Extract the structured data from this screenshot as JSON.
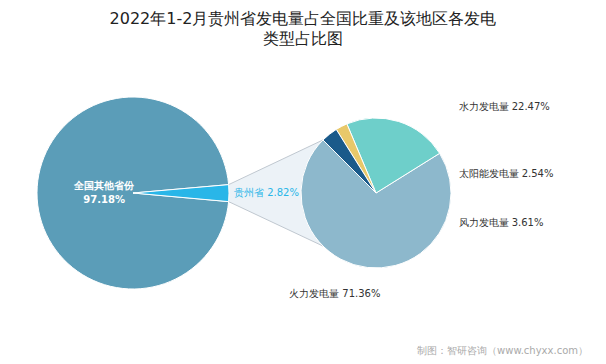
{
  "chart_data": [
    {
      "type": "pie",
      "title": "2022年1-2月贵州省发电量占全国比重及该地区各发电\n类型占比图",
      "categories": [
        "全国其他省份",
        "贵州省"
      ],
      "values": [
        97.18,
        2.82
      ],
      "value_labels": [
        "97.18%",
        "2.82%"
      ],
      "colors": [
        "#5b9db8",
        "#29b6e8"
      ],
      "data_labels": true,
      "annotations": [
        "制图：智研咨询（www.chyxx.com）"
      ]
    },
    {
      "type": "pie",
      "categories": [
        "火力发电量",
        "水力发电量",
        "太阳能发电量",
        "风力发电量"
      ],
      "values": [
        71.36,
        22.47,
        2.54,
        3.61
      ],
      "value_labels": [
        "71.36%",
        "22.47%",
        "2.54%",
        "3.61%"
      ],
      "colors": [
        "#8db8cc",
        "#6ecfca",
        "#e8c86a",
        "#1a5a8a"
      ],
      "data_labels": true
    }
  ]
}
